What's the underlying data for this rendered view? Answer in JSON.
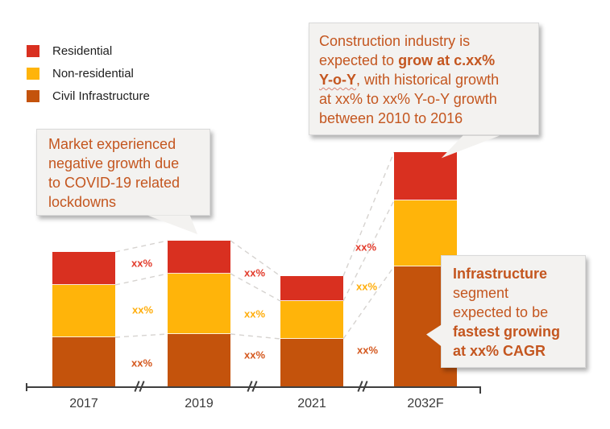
{
  "legend": {
    "items": [
      {
        "label": "Residential",
        "color": "#D93020"
      },
      {
        "label": "Non-residential",
        "color": "#FFB40A"
      },
      {
        "label": "Civil Infrastructure",
        "color": "#C4530C"
      }
    ]
  },
  "callouts": {
    "construction": {
      "segments": [
        {
          "text": "Construction industry is\nexpected to "
        },
        {
          "text": "grow at c.xx%\n"
        },
        {
          "text": "Y-o-Y"
        },
        {
          "text": ", with historical growth\nat xx% to xx% Y-o-Y growth\nbetween 2010 to 2016"
        }
      ]
    },
    "covid": {
      "text": "Market experienced\nnegative growth due\nto COVID-19 related\nlockdowns"
    },
    "infrastructure": {
      "segments": [
        {
          "text": "Infrastructure"
        },
        {
          "text": "\nsegment\nexpected to be\n"
        },
        {
          "text": "fastest growing\nat xx% CAGR"
        }
      ]
    }
  },
  "chart_data": {
    "type": "bar",
    "stacked": true,
    "title": "",
    "xlabel": "",
    "ylabel": "",
    "categories": [
      "2017",
      "2019",
      "2021",
      "2032F"
    ],
    "series": [
      {
        "name": "Civil Infrastructure",
        "color": "#C4530C",
        "label_color": "#D4571D",
        "values": [
          61,
          65,
          59,
          149
        ],
        "growth_labels": [
          "xx%",
          "xx%",
          "xx%"
        ]
      },
      {
        "name": "Non-residential",
        "color": "#FFB40A",
        "label_color": "#FFAD0A",
        "values": [
          65,
          75,
          47,
          82
        ],
        "growth_labels": [
          "xx%",
          "xx%",
          "xx%"
        ]
      },
      {
        "name": "Residential",
        "color": "#D93020",
        "label_color": "#E23B2B",
        "values": [
          41,
          41,
          31,
          60
        ],
        "growth_labels": [
          "xx%",
          "xx%",
          "xx%"
        ]
      }
    ],
    "axis_breaks_between_categories": true,
    "legend_position": "top-left",
    "grid": false,
    "note": "No value axis shown; segment values are xx% placeholders, heights estimated in relative pixel units from the figure"
  }
}
